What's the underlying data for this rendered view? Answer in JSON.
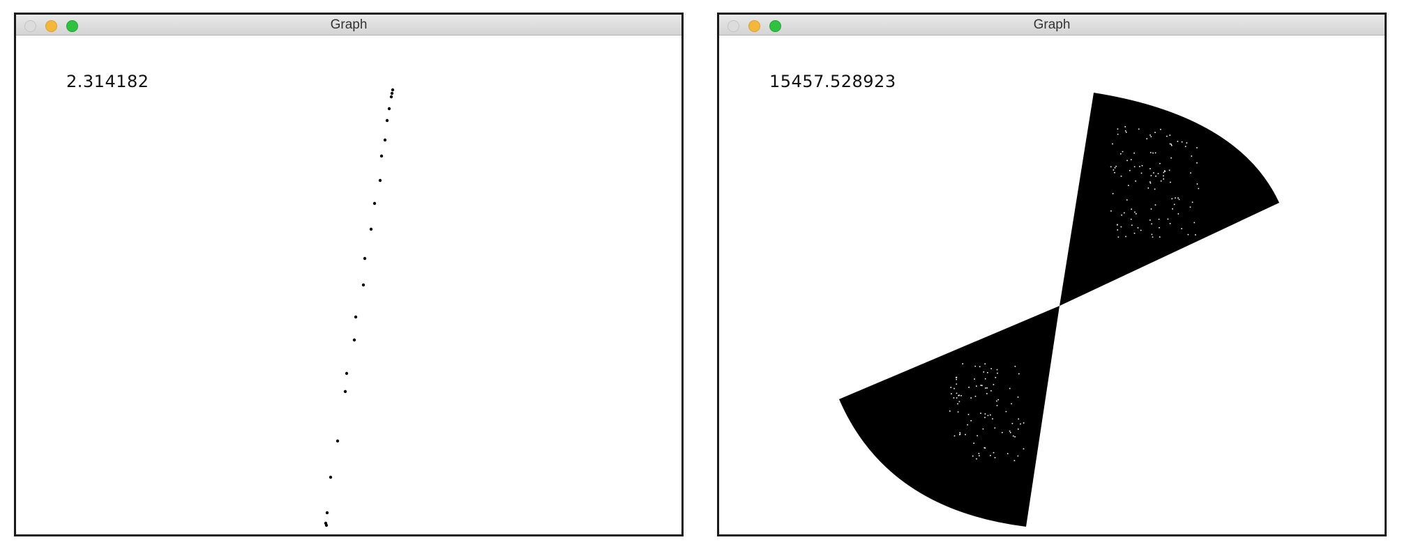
{
  "windows": [
    {
      "title": "Graph",
      "readout": "2.314182",
      "plot": "scattered-points",
      "colors": {
        "background": "#ffffff",
        "points": "#000000"
      }
    },
    {
      "title": "Graph",
      "readout": "15457.528923",
      "plot": "filled-bowtie-sectors",
      "colors": {
        "background": "#ffffff",
        "fill": "#000000",
        "speckle": "#ffffff"
      }
    }
  ],
  "titlebar_buttons": {
    "close": {
      "icon": "close-circle-icon",
      "color": "#dcdcdc"
    },
    "minimize": {
      "icon": "minimize-circle-icon",
      "color": "#f5b73b"
    },
    "zoom": {
      "icon": "zoom-circle-icon",
      "color": "#2fc240"
    }
  }
}
